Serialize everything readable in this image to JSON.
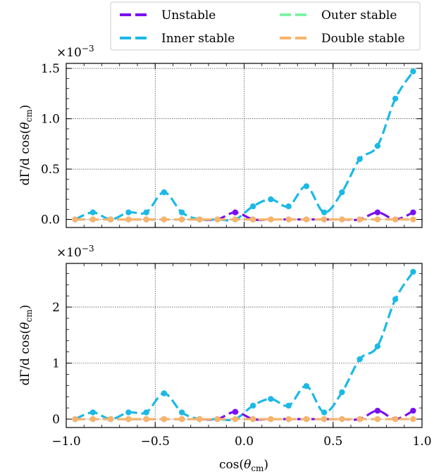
{
  "legend": {
    "placement": "top-right, above plots, 2 columns",
    "entries": [
      {
        "label": "Unstable",
        "color": "#7a0ff0"
      },
      {
        "label": "Outer stable",
        "color": "#7ef3a6"
      },
      {
        "label": "Inner stable",
        "color": "#1cb9e6"
      },
      {
        "label": "Double stable",
        "color": "#f9b46c"
      }
    ]
  },
  "chart_data": [
    {
      "type": "line",
      "xlabel_base": "cos(",
      "xlabel_theta": "θ",
      "xlabel_sub": "cm",
      "xlabel_close": ")",
      "ylabel_base": "dΓ/d cos(",
      "ylabel_theta": "θ",
      "ylabel_sub": "cm",
      "ylabel_close": ")",
      "multiplier_base": "×10",
      "multiplier_exp": "−3",
      "xlim": [
        -1.0,
        1.0
      ],
      "ylim": [
        -0.08,
        1.55
      ],
      "grid": true,
      "xticks": [
        -1.0,
        -0.5,
        0.0,
        0.5,
        1.0
      ],
      "xticklabels": [
        "−1.0",
        "−0.5",
        "0.0",
        "0.5",
        "1.0"
      ],
      "yticks": [
        0.0,
        0.5,
        1.0,
        1.5
      ],
      "yticklabels": [
        "0.0",
        "0.5",
        "1.0",
        "1.5"
      ],
      "x": [
        -0.95,
        -0.85,
        -0.75,
        -0.65,
        -0.55,
        -0.45,
        -0.35,
        -0.25,
        -0.15,
        -0.05,
        0.05,
        0.15,
        0.25,
        0.35,
        0.45,
        0.55,
        0.65,
        0.75,
        0.85,
        0.95
      ],
      "series": [
        {
          "name": "Unstable",
          "values": [
            0,
            0,
            0,
            0,
            0,
            0,
            0,
            0,
            0,
            0.07,
            0,
            0,
            0,
            0,
            0,
            0,
            0,
            0.07,
            0,
            0.07
          ]
        },
        {
          "name": "Inner stable",
          "values": [
            0,
            0.07,
            0,
            0.07,
            0.07,
            0.27,
            0.07,
            0,
            0,
            0,
            0.13,
            0.2,
            0.13,
            0.33,
            0.07,
            0.27,
            0.6,
            0.73,
            1.2,
            1.47
          ]
        },
        {
          "name": "Outer stable",
          "values": [
            0,
            0,
            0,
            0,
            0,
            0,
            0,
            0,
            0,
            0,
            0,
            0,
            0,
            0,
            0,
            0,
            0,
            0,
            0,
            0
          ]
        },
        {
          "name": "Double stable",
          "values": [
            0,
            0,
            0,
            0,
            0,
            0,
            0,
            0,
            0,
            0,
            0,
            0,
            0,
            0,
            0,
            0,
            0,
            0,
            0,
            0
          ]
        }
      ]
    },
    {
      "type": "line",
      "xlabel_base": "cos(",
      "xlabel_theta": "θ",
      "xlabel_sub": "cm",
      "xlabel_close": ")",
      "ylabel_base": "dΓ/d cos(",
      "ylabel_theta": "θ",
      "ylabel_sub": "cm",
      "ylabel_close": ")",
      "multiplier_base": "×10",
      "multiplier_exp": "−3",
      "xlim": [
        -1.0,
        1.0
      ],
      "ylim": [
        -0.15,
        2.78
      ],
      "grid": true,
      "xticks": [
        -1.0,
        -0.5,
        0.0,
        0.5,
        1.0
      ],
      "xticklabels": [
        "−1.0",
        "−0.5",
        "0.0",
        "0.5",
        "1.0"
      ],
      "yticks": [
        0,
        1,
        2
      ],
      "yticklabels": [
        "0",
        "1",
        "2"
      ],
      "x": [
        -0.95,
        -0.85,
        -0.75,
        -0.65,
        -0.55,
        -0.45,
        -0.35,
        -0.25,
        -0.15,
        -0.05,
        0.05,
        0.15,
        0.25,
        0.35,
        0.45,
        0.55,
        0.65,
        0.75,
        0.85,
        0.95
      ],
      "series": [
        {
          "name": "Unstable",
          "values": [
            0,
            0,
            0,
            0,
            0,
            0,
            0,
            0,
            0,
            0.13,
            0,
            0,
            0,
            0,
            0,
            0,
            0,
            0.15,
            0,
            0.15
          ]
        },
        {
          "name": "Inner stable",
          "values": [
            0,
            0.12,
            0,
            0.12,
            0.12,
            0.46,
            0.12,
            0,
            0,
            0,
            0.24,
            0.36,
            0.24,
            0.59,
            0.12,
            0.48,
            1.07,
            1.3,
            2.14,
            2.63
          ]
        },
        {
          "name": "Outer stable",
          "values": [
            0,
            0,
            0,
            0,
            0,
            0,
            0,
            0,
            0,
            0,
            0,
            0,
            0,
            0,
            0,
            0,
            0,
            0,
            0,
            0
          ]
        },
        {
          "name": "Double stable",
          "values": [
            0,
            0,
            0,
            0,
            0,
            0,
            0,
            0,
            0,
            0,
            0,
            0,
            0,
            0,
            0,
            0,
            0,
            0,
            0,
            0
          ]
        }
      ]
    }
  ]
}
